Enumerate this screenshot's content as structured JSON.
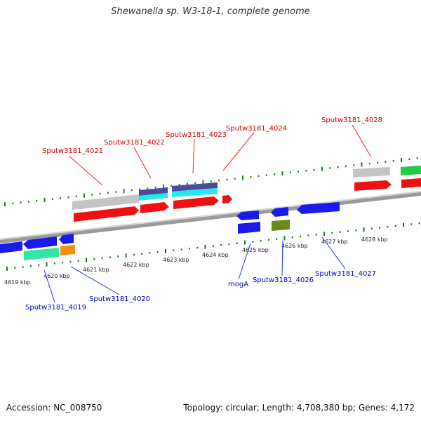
{
  "title": "Shewanella sp. W3-18-1, complete genome",
  "footer": {
    "accession": "Accession: NC_008750",
    "summary": "Topology: circular; Length: 4,708,380 bp; Genes: 4,172"
  },
  "colors": {
    "backbone": "#9a9a9a",
    "ticks": "#1e7a1e",
    "gene_label_top": "#cc0000",
    "gene_label_bottom": "#0000cc",
    "red": "#ee1111",
    "grey": "#c4c4c4",
    "navy": "#4b4b9e",
    "cyan": "#22eaea",
    "green": "#22cc44",
    "blue": "#1a1aee",
    "mint": "#33e6a6",
    "orange": "#f2900a",
    "olive": "#6a8a1a"
  },
  "scale_labels": [
    "4619 kbp",
    "4620 kbp",
    "4621 kbp",
    "4622 kbp",
    "4623 kbp",
    "4624 kbp",
    "4625 kbp",
    "4626 kbp",
    "4627 kbp",
    "4628 kbp"
  ],
  "gene_labels_top": [
    "Sputw3181_4021",
    "Sputw3181_4022",
    "Sputw3181_4023",
    "Sputw3181_4024",
    "Sputw3181_4028"
  ],
  "gene_labels_bottom": [
    "Sputw3181_4019",
    "Sputw3181_4020",
    "mogA",
    "Sputw3181_4026",
    "Sputw3181_4027"
  ]
}
